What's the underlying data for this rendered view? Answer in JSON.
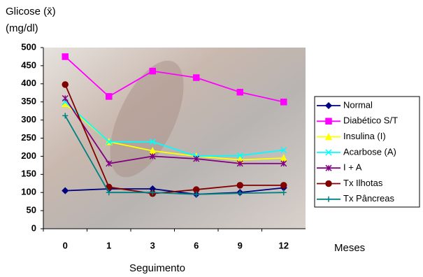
{
  "chart_data": {
    "type": "line",
    "ylabel": "Glicose (x̄)",
    "ylabel_unit": "(mg/dl)",
    "xlabel": "Seguimento",
    "xunit": "Meses",
    "categories": [
      "0",
      "1",
      "3",
      "6",
      "9",
      "12"
    ],
    "ylim": [
      0,
      500
    ],
    "yticks": [
      0,
      50,
      100,
      150,
      200,
      250,
      300,
      350,
      400,
      450,
      500
    ],
    "series": [
      {
        "name": "Normal",
        "color": "#000080",
        "marker": "diamond",
        "values": [
          105,
          110,
          110,
          95,
          100,
          113
        ]
      },
      {
        "name": "Diabético S/T",
        "color": "#ff00ff",
        "marker": "square",
        "values": [
          475,
          365,
          435,
          417,
          377,
          350
        ]
      },
      {
        "name": "Insulina (I)",
        "color": "#ffff00",
        "marker": "triangle",
        "values": [
          345,
          240,
          215,
          200,
          190,
          195
        ]
      },
      {
        "name": "Acarbose (A)",
        "color": "#00ffff",
        "marker": "x",
        "values": [
          350,
          240,
          240,
          200,
          202,
          217
        ]
      },
      {
        "name": "I + A",
        "color": "#800080",
        "marker": "star",
        "values": [
          360,
          180,
          200,
          193,
          180,
          180
        ]
      },
      {
        "name": "Tx Ilhotas",
        "color": "#800000",
        "marker": "circle",
        "values": [
          398,
          115,
          97,
          108,
          120,
          120
        ]
      },
      {
        "name": "Tx Pâncreas",
        "color": "#008080",
        "marker": "plus",
        "values": [
          312,
          100,
          100,
          95,
          98,
          100
        ]
      }
    ]
  }
}
